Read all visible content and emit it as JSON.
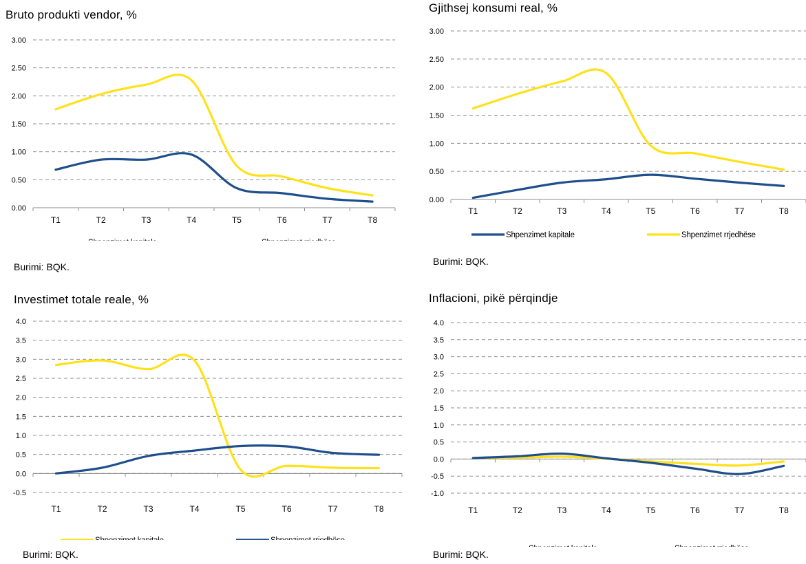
{
  "colors": {
    "blue": "#1f4e8c",
    "yellow": "#ffe11a",
    "grid": "#8c8c8c",
    "axis": "#8c8c8c"
  },
  "chart_data": [
    {
      "type": "line",
      "title": "Bruto produkti vendor,  %",
      "source": "Burimi: BQK.",
      "categories": [
        "T1",
        "T2",
        "T3",
        "T4",
        "T5",
        "T6",
        "T7",
        "T8"
      ],
      "yticks": [
        "3.00",
        "2.50",
        "2.00",
        "1.50",
        "1.00",
        "0.50",
        "0.00"
      ],
      "ylim": [
        0,
        3
      ],
      "series": [
        {
          "name": "Shpenzimet kapitale",
          "color": "blue",
          "values": [
            0.68,
            0.86,
            0.86,
            0.95,
            0.35,
            0.26,
            0.16,
            0.11
          ]
        },
        {
          "name": "Shpenzimet rrjedhëse",
          "color": "yellow",
          "values": [
            1.76,
            2.03,
            2.2,
            2.28,
            0.75,
            0.56,
            0.35,
            0.22
          ]
        }
      ]
    },
    {
      "type": "line",
      "title": "Gjithsej konsumi real, %",
      "source": "Burimi: BQK.",
      "categories": [
        "T1",
        "T2",
        "T3",
        "T4",
        "T5",
        "T6",
        "T7",
        "T8"
      ],
      "yticks": [
        "3.00",
        "2.50",
        "2.00",
        "1.50",
        "1.00",
        "0.50",
        "0.00"
      ],
      "ylim": [
        0,
        3
      ],
      "series": [
        {
          "name": "Shpenzimet kapitale",
          "color": "blue",
          "values": [
            0.03,
            0.17,
            0.3,
            0.36,
            0.44,
            0.37,
            0.3,
            0.24
          ]
        },
        {
          "name": "Shpenzimet rrjedhëse",
          "color": "yellow",
          "values": [
            1.62,
            1.88,
            2.1,
            2.25,
            0.96,
            0.82,
            0.67,
            0.53
          ]
        }
      ]
    },
    {
      "type": "line",
      "title": "Investimet totale reale, %",
      "source": "Burimi: BQK.",
      "categories": [
        "T1",
        "T2",
        "T3",
        "T4",
        "T5",
        "T6",
        "T7",
        "T8"
      ],
      "yticks": [
        "4.0",
        "3.5",
        "3.0",
        "2.5",
        "2.0",
        "1.5",
        "1.0",
        "0.5",
        "0.0",
        "-0.5"
      ],
      "ylim": [
        -0.5,
        4
      ],
      "series": [
        {
          "name": "Shpenzimet kapitale",
          "color": "yellow",
          "values": [
            2.85,
            2.97,
            2.74,
            2.97,
            0.1,
            0.2,
            0.15,
            0.14
          ]
        },
        {
          "name": "Shpenzimet rrjedhëse",
          "color": "blue",
          "values": [
            0.0,
            0.15,
            0.46,
            0.6,
            0.72,
            0.71,
            0.54,
            0.49
          ]
        }
      ]
    },
    {
      "type": "line",
      "title": "Inflacioni, pikë përqindje",
      "source": "Burimi: BQK.",
      "categories": [
        "T1",
        "T2",
        "T3",
        "T4",
        "T5",
        "T6",
        "T7",
        "T8"
      ],
      "yticks": [
        "4.0",
        "3.5",
        "3.0",
        "2.5",
        "2.0",
        "1.5",
        "1.0",
        "0.5",
        "0.0",
        "-0.5",
        "-1.0"
      ],
      "ylim": [
        -1,
        4
      ],
      "series": [
        {
          "name": "Shpenzimet kapitale",
          "color": "yellow",
          "values": [
            0.03,
            0.04,
            0.07,
            0.01,
            -0.07,
            -0.14,
            -0.19,
            -0.07
          ]
        },
        {
          "name": "Shpenzimet rrjedhëse",
          "color": "blue",
          "values": [
            0.03,
            0.08,
            0.16,
            0.02,
            -0.11,
            -0.28,
            -0.44,
            -0.2
          ]
        }
      ]
    }
  ]
}
